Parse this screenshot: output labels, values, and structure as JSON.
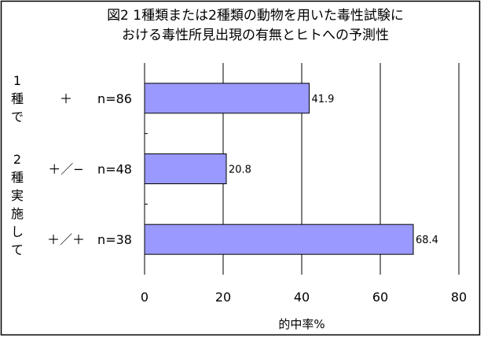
{
  "chart_data": {
    "type": "bar",
    "orientation": "horizontal",
    "title_lines": [
      "図2 1種類または2種類の動物を用いた毒性試験に",
      "おける毒性所見出現の有無とヒトへの予測性"
    ],
    "group_labels": [
      {
        "label": "1種で",
        "rows": [
          0
        ]
      },
      {
        "label": "2種実施して",
        "rows": [
          1,
          2
        ]
      }
    ],
    "categories": [
      "＋",
      "＋／−",
      "＋／＋"
    ],
    "sample_sizes": [
      "n=86",
      "n=48",
      "n=38"
    ],
    "values": [
      41.9,
      20.8,
      68.4
    ],
    "value_labels": [
      "41.9",
      "20.8",
      "68.4"
    ],
    "xlabel": "的中率%",
    "xlim": [
      0,
      80
    ],
    "xticks": [
      "0",
      "20",
      "40",
      "60",
      "80"
    ],
    "grid": true,
    "legend": "none",
    "colors": {
      "bar_fill": "#9999ff",
      "bar_stroke": "#000000",
      "grid": "#000000",
      "border": "#000000"
    }
  }
}
